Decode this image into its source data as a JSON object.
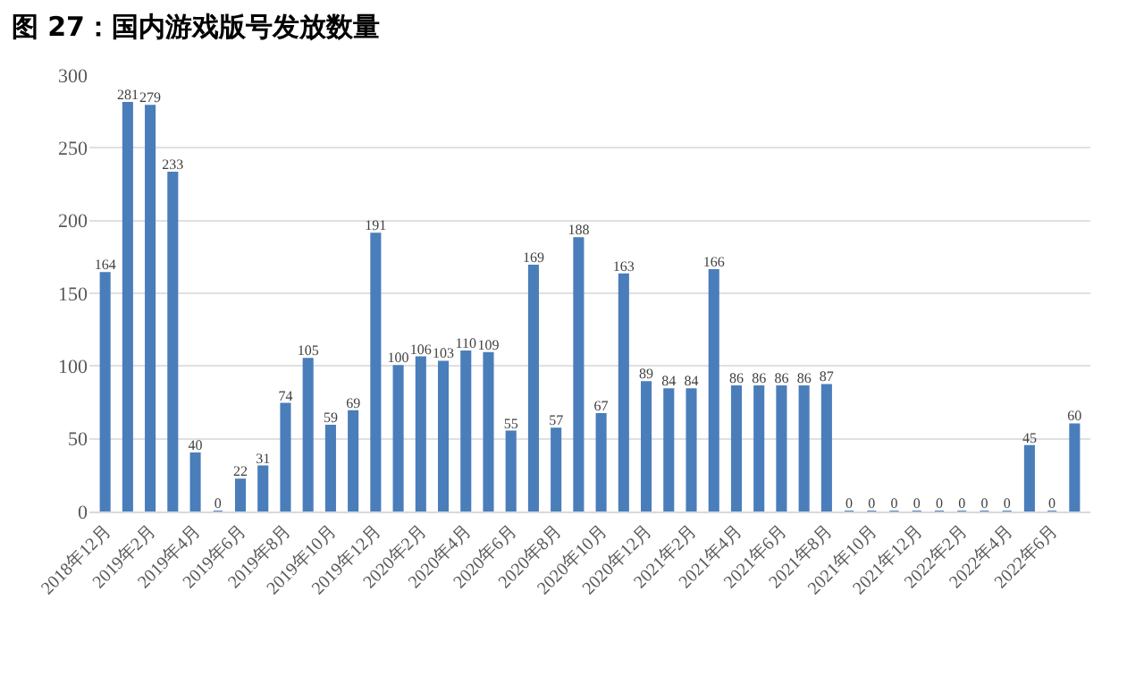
{
  "chart_data": {
    "type": "bar",
    "title": "图 27：国内游戏版号发放数量",
    "categories": [
      "2018年12月",
      null,
      "2019年2月",
      null,
      "2019年4月",
      null,
      "2019年6月",
      null,
      "2019年8月",
      null,
      "2019年10月",
      null,
      "2019年12月",
      null,
      "2020年2月",
      null,
      "2020年4月",
      null,
      "2020年6月",
      null,
      "2020年8月",
      null,
      "2020年10月",
      null,
      "2020年12月",
      null,
      "2021年2月",
      null,
      "2021年4月",
      null,
      "2021年6月",
      null,
      "2021年8月",
      null,
      "2021年10月",
      null,
      "2021年12月",
      null,
      "2022年2月",
      null,
      "2022年4月",
      null,
      "2022年6月",
      null
    ],
    "values": [
      164,
      281,
      279,
      233,
      40,
      0,
      22,
      31,
      74,
      105,
      59,
      69,
      191,
      100,
      106,
      103,
      110,
      109,
      55,
      169,
      57,
      188,
      67,
      163,
      89,
      84,
      84,
      166,
      86,
      86,
      86,
      86,
      87,
      0,
      0,
      0,
      0,
      0,
      0,
      0,
      0,
      45,
      0,
      60
    ],
    "color": "#4a7ebb",
    "ylim": [
      0,
      300
    ],
    "yticks": [
      0,
      50,
      100,
      150,
      200,
      250,
      300
    ],
    "grid": "y",
    "data_labels": true
  }
}
